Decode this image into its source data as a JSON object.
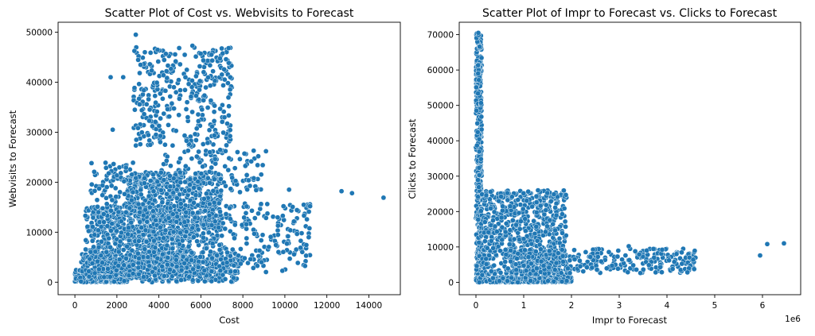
{
  "chart_data": [
    {
      "type": "scatter",
      "title": "Scatter Plot of Cost vs. Webvisits to Forecast",
      "xlabel": "Cost",
      "ylabel": "Webvisits to Forecast",
      "xlim": [
        -800,
        15500
      ],
      "ylim": [
        -2500,
        52000
      ],
      "xticks": [
        0,
        2000,
        4000,
        6000,
        8000,
        10000,
        12000,
        14000
      ],
      "yticks": [
        0,
        10000,
        20000,
        30000,
        40000,
        50000
      ],
      "color": "#1f77b4",
      "clusters": [
        {
          "x": [
            0,
            2500
          ],
          "y": [
            0,
            2500
          ],
          "n": 520
        },
        {
          "x": [
            200,
            7800
          ],
          "y": [
            0,
            6000
          ],
          "n": 500
        },
        {
          "x": [
            500,
            5500
          ],
          "y": [
            1000,
            15000
          ],
          "n": 700
        },
        {
          "x": [
            2500,
            7000
          ],
          "y": [
            8000,
            22000
          ],
          "n": 700
        },
        {
          "x": [
            3000,
            11200
          ],
          "y": [
            2000,
            16000
          ],
          "n": 350
        },
        {
          "x": [
            2800,
            7500
          ],
          "y": [
            27000,
            47000
          ],
          "n": 340
        },
        {
          "x": [
            700,
            2800
          ],
          "y": [
            13000,
            24000
          ],
          "n": 100
        },
        {
          "x": [
            4000,
            9000
          ],
          "y": [
            18000,
            26500
          ],
          "n": 120
        }
      ],
      "points": [
        {
          "x": 2900,
          "y": 49500
        },
        {
          "x": 1700,
          "y": 41000
        },
        {
          "x": 2300,
          "y": 41000
        },
        {
          "x": 1800,
          "y": 30500
        },
        {
          "x": 12700,
          "y": 18200
        },
        {
          "x": 13200,
          "y": 17800
        },
        {
          "x": 14700,
          "y": 16900
        },
        {
          "x": 10100,
          "y": 7700
        },
        {
          "x": 10200,
          "y": 18500
        },
        {
          "x": 11200,
          "y": 15200
        },
        {
          "x": 9100,
          "y": 26200
        },
        {
          "x": 5600,
          "y": 47300
        },
        {
          "x": 6500,
          "y": 45500
        },
        {
          "x": 7200,
          "y": 44600
        },
        {
          "x": 500,
          "y": 13300
        },
        {
          "x": 7400,
          "y": 41000
        }
      ]
    },
    {
      "type": "scatter",
      "title": "Scatter Plot of Impr to Forecast vs. Clicks to Forecast",
      "xlabel": "Impr to Forecast",
      "ylabel": "Clicks to Forecast",
      "x_scale_label": "1e6",
      "xlim": [
        -0.35,
        6.8
      ],
      "ylim": [
        -3500,
        73500
      ],
      "xticks": [
        0,
        1,
        2,
        3,
        4,
        5,
        6
      ],
      "yticks": [
        0,
        10000,
        20000,
        30000,
        40000,
        50000,
        60000,
        70000
      ],
      "color": "#1f77b4",
      "clusters": [
        {
          "x": [
            0.0,
            0.12
          ],
          "y": [
            0,
            70500
          ],
          "n": 420
        },
        {
          "x": [
            0.0,
            2.0
          ],
          "y": [
            0,
            1500
          ],
          "n": 380
        },
        {
          "x": [
            0.1,
            1.9
          ],
          "y": [
            2000,
            26000
          ],
          "n": 650
        },
        {
          "x": [
            0.6,
            4.6
          ],
          "y": [
            2500,
            9500
          ],
          "n": 320
        }
      ],
      "points": [
        {
          "x": 0.05,
          "y": 70500
        },
        {
          "x": 0.4,
          "y": 15800
        },
        {
          "x": 1.3,
          "y": 26000
        },
        {
          "x": 3.9,
          "y": 9200
        },
        {
          "x": 4.2,
          "y": 8000
        },
        {
          "x": 4.55,
          "y": 6400
        },
        {
          "x": 5.95,
          "y": 7600
        },
        {
          "x": 6.1,
          "y": 10800
        },
        {
          "x": 6.45,
          "y": 11000
        },
        {
          "x": 3.2,
          "y": 10200
        },
        {
          "x": 1.9,
          "y": 400
        },
        {
          "x": 1.8,
          "y": 200
        }
      ]
    }
  ]
}
